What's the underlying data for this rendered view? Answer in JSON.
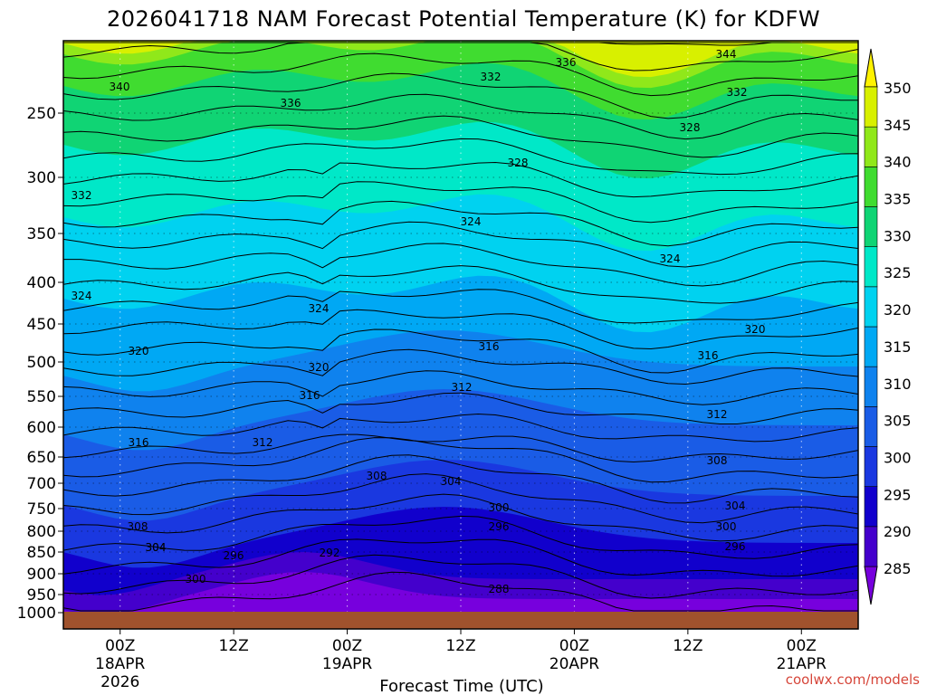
{
  "chart_data": {
    "type": "heatmap",
    "title": "2026041718 NAM Forecast Potential Temperature (K) for KDFW",
    "xlabel": "Forecast Time (UTC)",
    "ylabel": "",
    "credit": "coolwx.com/models",
    "y_scale": "pressure (log-like, inverted)",
    "y_ticks": [
      "250",
      "300",
      "350",
      "400",
      "450",
      "500",
      "550",
      "600",
      "650",
      "700",
      "750",
      "800",
      "850",
      "900",
      "950",
      "1000"
    ],
    "x_ticks": [
      {
        "hours": 6,
        "lines": [
          "00Z",
          "18APR",
          "2026"
        ]
      },
      {
        "hours": 18,
        "lines": [
          "12Z"
        ]
      },
      {
        "hours": 30,
        "lines": [
          "00Z",
          "19APR"
        ]
      },
      {
        "hours": 42,
        "lines": [
          "12Z"
        ]
      },
      {
        "hours": 54,
        "lines": [
          "00Z",
          "20APR"
        ]
      },
      {
        "hours": 66,
        "lines": [
          "12Z"
        ]
      },
      {
        "hours": 78,
        "lines": [
          "00Z",
          "21APR"
        ]
      }
    ],
    "x_range_hours": [
      0,
      84
    ],
    "colorbar": {
      "levels": [
        285,
        290,
        295,
        300,
        305,
        310,
        315,
        320,
        325,
        330,
        335,
        340,
        345,
        350
      ],
      "labels": [
        "285",
        "290",
        "295",
        "300",
        "305",
        "310",
        "315",
        "320",
        "325",
        "330",
        "335",
        "340",
        "345",
        "350"
      ],
      "colors": [
        "#7700dd",
        "#4400cc",
        "#1100cc",
        "#1a38e0",
        "#1a5ce6",
        "#0f82ee",
        "#00a8f4",
        "#00d2f0",
        "#00e8c8",
        "#10d474",
        "#40dc30",
        "#90e81a",
        "#d8f000",
        "#fff200"
      ]
    },
    "contour_labels": [
      "344",
      "336",
      "332",
      "340",
      "336",
      "332",
      "328",
      "328",
      "332",
      "324",
      "324",
      "324",
      "320",
      "324",
      "320",
      "316",
      "316",
      "316",
      "320",
      "316",
      "312",
      "312",
      "312",
      "308",
      "308",
      "304",
      "304",
      "300",
      "304",
      "308",
      "304",
      "300",
      "296",
      "296",
      "300",
      "292",
      "296",
      "288"
    ]
  }
}
